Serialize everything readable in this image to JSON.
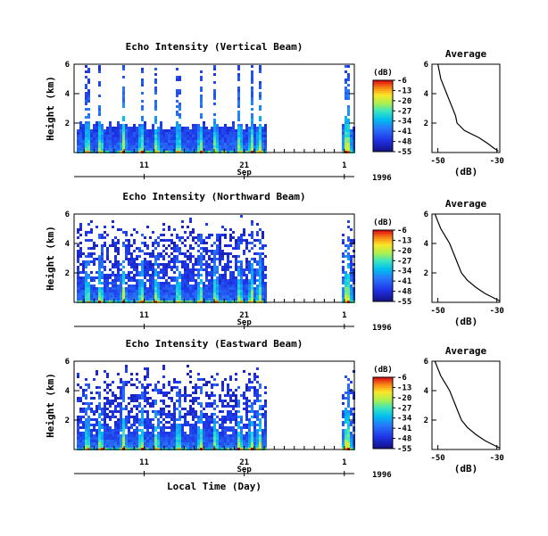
{
  "figure": {
    "xlabel": "Local Time (Day)",
    "month_label": "Sep",
    "year_label": "1996",
    "colorbar_unit": "(dB)",
    "avg_title": "Average",
    "avg_xlabel": "(dB)"
  },
  "chart_data": [
    {
      "type": "heatmap",
      "title": "Echo Intensity (Vertical Beam)",
      "ylabel": "Height (km)",
      "xticks": [
        "11",
        "21",
        "1"
      ],
      "xlim": [
        4,
        32
      ],
      "yticks": [
        "6",
        "4",
        "2"
      ],
      "ylim": [
        0,
        6
      ],
      "data_gap": [
        23,
        30.5
      ],
      "colorbar": {
        "ticks": [
          "-6",
          "-13",
          "-20",
          "-27",
          "-34",
          "-41",
          "-48",
          "-55"
        ],
        "range": [
          -55,
          -6
        ]
      },
      "echo_top_km": 2.2,
      "average_profile": {
        "title": "Average",
        "xlabel": "(dB)",
        "xticks": [
          "-50",
          "-30"
        ],
        "xlim": [
          -52,
          -29
        ],
        "yticks": [
          "6",
          "4",
          "2"
        ],
        "ylim": [
          0,
          6
        ],
        "points": [
          [
            -50,
            6.0
          ],
          [
            -49.5,
            5.5
          ],
          [
            -49,
            5.0
          ],
          [
            -48,
            4.5
          ],
          [
            -47,
            4.0
          ],
          [
            -46,
            3.5
          ],
          [
            -45,
            3.0
          ],
          [
            -44,
            2.5
          ],
          [
            -43.5,
            2.0
          ],
          [
            -41,
            1.5
          ],
          [
            -36,
            1.0
          ],
          [
            -33,
            0.6
          ],
          [
            -31,
            0.3
          ],
          [
            -29.5,
            0.1
          ]
        ]
      }
    },
    {
      "type": "heatmap",
      "title": "Echo Intensity (Northward Beam)",
      "ylabel": "Height (km)",
      "xticks": [
        "11",
        "21",
        "1"
      ],
      "xlim": [
        4,
        32
      ],
      "yticks": [
        "6",
        "4",
        "2"
      ],
      "ylim": [
        0,
        6
      ],
      "data_gap": [
        23,
        30.5
      ],
      "colorbar": {
        "ticks": [
          "-6",
          "-13",
          "-20",
          "-27",
          "-34",
          "-41",
          "-48",
          "-55"
        ],
        "range": [
          -55,
          -6
        ]
      },
      "echo_top_km": 6.0,
      "average_profile": {
        "title": "Average",
        "xlabel": "(dB)",
        "xticks": [
          "-50",
          "-30"
        ],
        "xlim": [
          -52,
          -29
        ],
        "yticks": [
          "6",
          "4",
          "2"
        ],
        "ylim": [
          0,
          6
        ],
        "points": [
          [
            -51,
            6.0
          ],
          [
            -50,
            5.5
          ],
          [
            -49,
            5.0
          ],
          [
            -47.5,
            4.5
          ],
          [
            -46,
            4.0
          ],
          [
            -45,
            3.5
          ],
          [
            -44,
            3.0
          ],
          [
            -43,
            2.5
          ],
          [
            -42,
            2.0
          ],
          [
            -40,
            1.5
          ],
          [
            -37,
            1.0
          ],
          [
            -34,
            0.6
          ],
          [
            -31,
            0.3
          ],
          [
            -29,
            0.1
          ]
        ]
      }
    },
    {
      "type": "heatmap",
      "title": "Echo Intensity (Eastward Beam)",
      "ylabel": "Height (km)",
      "xticks": [
        "11",
        "21",
        "1"
      ],
      "xlim": [
        4,
        32
      ],
      "yticks": [
        "6",
        "4",
        "2"
      ],
      "ylim": [
        0,
        6
      ],
      "data_gap": [
        23,
        30.5
      ],
      "colorbar": {
        "ticks": [
          "-6",
          "-13",
          "-20",
          "-27",
          "-34",
          "-41",
          "-48",
          "-55"
        ],
        "range": [
          -55,
          -6
        ]
      },
      "echo_top_km": 6.0,
      "average_profile": {
        "title": "Average",
        "xlabel": "(dB)",
        "xticks": [
          "-50",
          "-30"
        ],
        "xlim": [
          -52,
          -29
        ],
        "yticks": [
          "6",
          "4",
          "2"
        ],
        "ylim": [
          0,
          6
        ],
        "points": [
          [
            -51,
            6.0
          ],
          [
            -50,
            5.5
          ],
          [
            -49,
            5.0
          ],
          [
            -47.5,
            4.5
          ],
          [
            -46,
            4.0
          ],
          [
            -45,
            3.5
          ],
          [
            -44,
            3.0
          ],
          [
            -43,
            2.5
          ],
          [
            -42,
            2.0
          ],
          [
            -40,
            1.5
          ],
          [
            -37,
            1.0
          ],
          [
            -34,
            0.6
          ],
          [
            -31,
            0.3
          ],
          [
            -29,
            0.1
          ]
        ]
      }
    }
  ]
}
